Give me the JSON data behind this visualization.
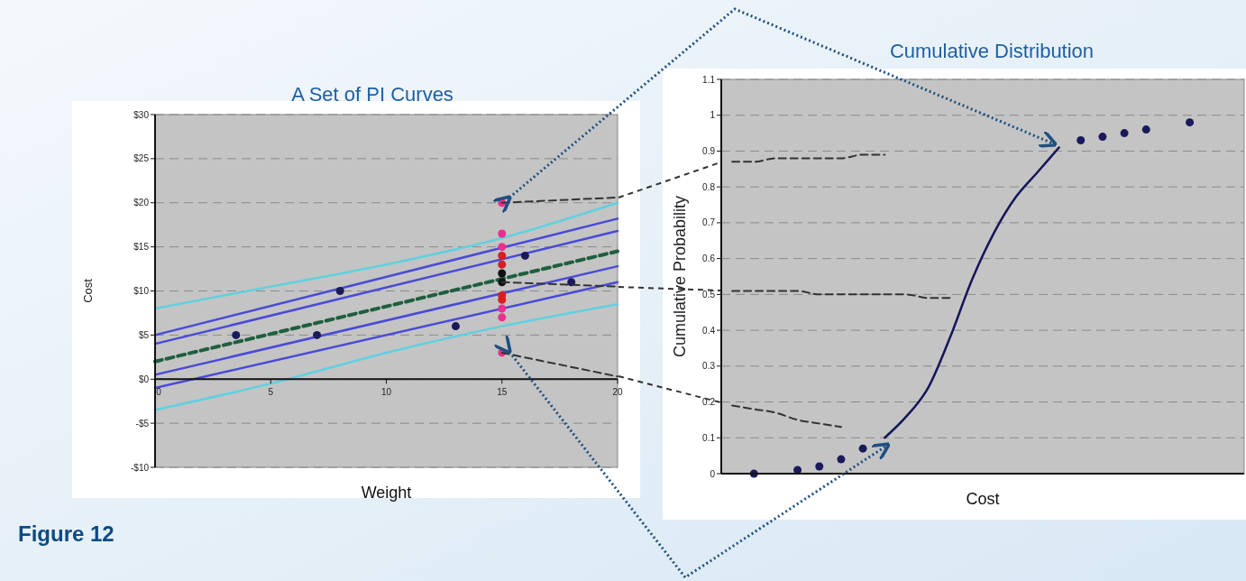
{
  "chart_data": [
    {
      "type": "line",
      "title": "A Set of PI Curves",
      "annotations": [
        "Figure 12"
      ],
      "xlabel": "Weight",
      "ylabel": "Cost",
      "xlim": [
        0,
        20
      ],
      "xticks": [
        0,
        5,
        10,
        15,
        20
      ],
      "ylim": [
        -10,
        30
      ],
      "yticks": [
        {
          "value": -10,
          "label": "-$10"
        },
        {
          "value": -5,
          "label": "-$5"
        },
        {
          "value": 0,
          "label": "$0"
        },
        {
          "value": 5,
          "label": "$5"
        },
        {
          "value": 10,
          "label": "$10"
        },
        {
          "value": 15,
          "label": "$15"
        },
        {
          "value": 20,
          "label": "$20"
        },
        {
          "value": 25,
          "label": "$25"
        },
        {
          "value": 30,
          "label": "$30"
        }
      ],
      "grid": "y",
      "series": [
        {
          "type": "line",
          "color": "#5fd0e0",
          "x": [
            0,
            5,
            10,
            15,
            20
          ],
          "values": [
            8,
            10.5,
            13,
            16,
            20
          ]
        },
        {
          "type": "line",
          "color": "#5fd0e0",
          "x": [
            0,
            5,
            10,
            15,
            20
          ],
          "values": [
            -3.5,
            -0.5,
            3,
            6,
            8.5
          ]
        },
        {
          "type": "line",
          "color": "#4a4ad8",
          "x": [
            0,
            20
          ],
          "values": [
            5,
            18.2
          ]
        },
        {
          "type": "line",
          "color": "#4a4ad8",
          "x": [
            0,
            20
          ],
          "values": [
            4,
            16.8
          ]
        },
        {
          "type": "line",
          "color": "#4a4ad8",
          "x": [
            0,
            20
          ],
          "values": [
            0.5,
            12.8
          ]
        },
        {
          "type": "line",
          "color": "#4a4ad8",
          "x": [
            0,
            20
          ],
          "values": [
            -1,
            11
          ]
        },
        {
          "type": "line",
          "color": "#1f5f3f",
          "line_style": "dashed",
          "x": [
            0,
            20
          ],
          "values": [
            2,
            14.5
          ]
        },
        {
          "type": "scatter",
          "color": "#1a1a5a",
          "x": [
            3.5,
            7,
            8,
            13,
            16,
            18
          ],
          "values": [
            5,
            5,
            10,
            6,
            14,
            11
          ]
        },
        {
          "type": "scatter",
          "color": "#e8308c",
          "x": [
            15,
            15,
            15,
            15,
            15,
            15
          ],
          "values": [
            20,
            16.5,
            15,
            8,
            7,
            3
          ]
        },
        {
          "type": "scatter",
          "color": "#d81e1e",
          "x": [
            15,
            15,
            15,
            15
          ],
          "values": [
            14,
            13,
            9.5,
            9
          ]
        },
        {
          "type": "scatter",
          "color": "#111111",
          "x": [
            15,
            15
          ],
          "values": [
            12,
            11
          ]
        },
        {
          "type": "line",
          "color": "#333333",
          "line_style": "dashed",
          "x": [
            15,
            20
          ],
          "values": [
            20,
            20.6
          ]
        },
        {
          "type": "line",
          "color": "#333333",
          "line_style": "dashed",
          "x": [
            15,
            20
          ],
          "values": [
            11,
            10.5
          ]
        },
        {
          "type": "line",
          "color": "#333333",
          "line_style": "dashed",
          "x": [
            15,
            20
          ],
          "values": [
            3,
            0.3
          ]
        }
      ]
    },
    {
      "type": "line",
      "title": "Cumulative Distribution",
      "xlabel": "Cost",
      "ylabel": "Cumulative Probability",
      "categories": [
        null,
        null,
        null,
        null,
        null,
        null,
        null,
        null,
        null,
        null,
        null,
        null,
        null,
        null,
        null,
        null,
        null,
        null,
        null,
        null,
        null,
        null,
        null,
        null
      ],
      "ylim": [
        0,
        1.1
      ],
      "yticks": [
        0,
        0.1,
        0.2,
        0.3,
        0.4,
        0.5,
        0.6,
        0.7,
        0.8,
        0.9,
        1,
        1.1
      ],
      "grid": "y",
      "series": [
        {
          "type": "scatter",
          "color": "#1a1a5a",
          "values": [
            null,
            0.0,
            null,
            0.01,
            0.02,
            0.04,
            0.07,
            null,
            null,
            null,
            null,
            null,
            null,
            null,
            null,
            null,
            0.93,
            0.94,
            0.95,
            0.96,
            null,
            0.98,
            null,
            null
          ]
        },
        {
          "type": "line",
          "color": "#15155a",
          "values": [
            null,
            null,
            null,
            null,
            null,
            null,
            null,
            0.1,
            0.16,
            0.24,
            0.38,
            0.54,
            0.67,
            0.77,
            0.84,
            0.91,
            null,
            null,
            null,
            null,
            null,
            null,
            null,
            null
          ]
        },
        {
          "type": "line",
          "color": "#333333",
          "line_style": "dashed",
          "values": [
            0.87,
            0.87,
            0.88,
            0.88,
            0.88,
            0.88,
            0.89,
            0.89,
            null,
            null,
            null,
            null,
            null,
            null,
            null,
            null,
            null,
            null,
            null,
            null,
            null,
            null,
            null,
            null
          ]
        },
        {
          "type": "line",
          "color": "#333333",
          "line_style": "dashed",
          "values": [
            0.51,
            0.51,
            0.51,
            0.51,
            0.5,
            0.5,
            0.5,
            0.5,
            0.5,
            0.49,
            0.49,
            null,
            null,
            null,
            null,
            null,
            null,
            null,
            null,
            null,
            null,
            null,
            null,
            null
          ]
        },
        {
          "type": "line",
          "color": "#333333",
          "line_style": "dashed",
          "values": [
            0.19,
            0.18,
            0.17,
            0.15,
            0.14,
            0.13,
            null,
            null,
            null,
            null,
            null,
            null,
            null,
            null,
            null,
            null,
            null,
            null,
            null,
            null,
            null,
            null,
            null,
            null
          ]
        }
      ]
    }
  ]
}
